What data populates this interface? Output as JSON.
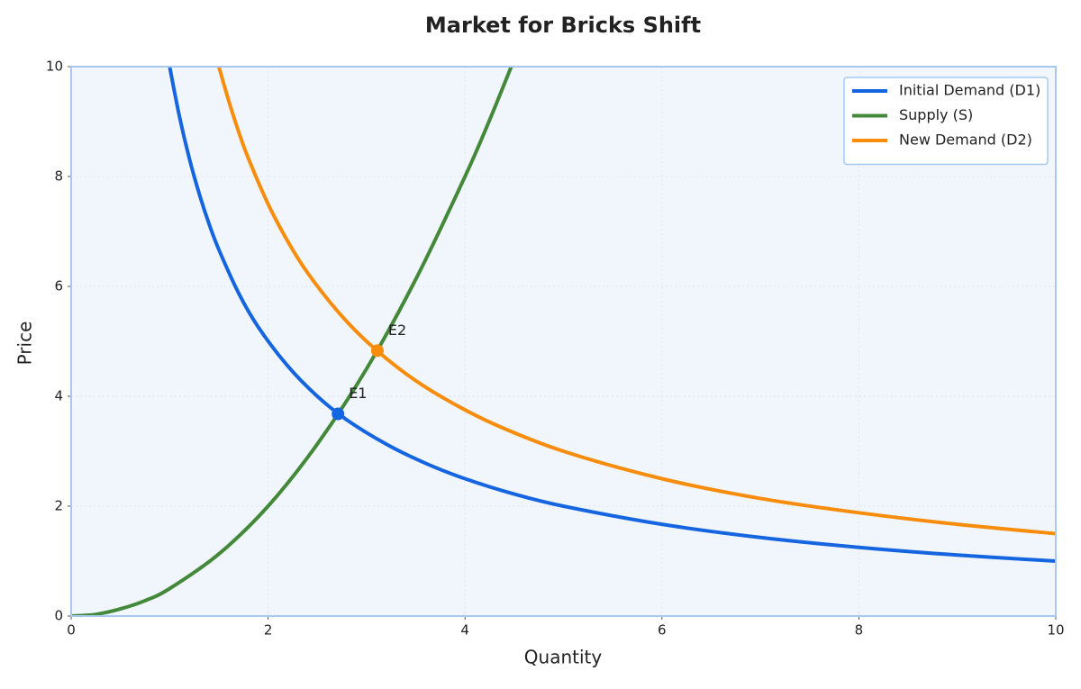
{
  "chart_data": {
    "type": "line",
    "title": "Market for Bricks Shift",
    "x_label": "Quantity",
    "y_label": "Price",
    "xlim": [
      0,
      10
    ],
    "ylim": [
      0,
      10
    ],
    "xticks": [
      0,
      2,
      4,
      6,
      8,
      10
    ],
    "yticks": [
      0,
      2,
      4,
      6,
      8,
      10
    ],
    "grid": true,
    "legend": "upper-right",
    "series": [
      {
        "name": "Initial Demand (D1)",
        "color": "#1565e0",
        "x": [
          1,
          1.1,
          1.2,
          1.3,
          1.4,
          1.5,
          1.7,
          1.9,
          2.2,
          2.5,
          2.8,
          3.2,
          3.6,
          4,
          4.5,
          5,
          6,
          7,
          8,
          9,
          10
        ],
        "values": [
          10,
          9.09,
          8.33,
          7.69,
          7.14,
          6.67,
          5.88,
          5.26,
          4.55,
          4,
          3.57,
          3.13,
          2.78,
          2.5,
          2.22,
          2,
          1.67,
          1.43,
          1.25,
          1.11,
          1
        ]
      },
      {
        "name": "Supply (S)",
        "color": "#44883a",
        "x": [
          0,
          0.25,
          0.5,
          0.75,
          1,
          1.5,
          2,
          2.5,
          3,
          3.5,
          4,
          4.25,
          4.47
        ],
        "values": [
          0,
          0.03,
          0.13,
          0.28,
          0.5,
          1.13,
          2,
          3.13,
          4.5,
          6.13,
          8,
          9.03,
          10
        ]
      },
      {
        "name": "New Demand (D2)",
        "color": "#f88c0c",
        "x": [
          1.5,
          1.6,
          1.7,
          1.8,
          2,
          2.2,
          2.4,
          2.7,
          3,
          3.4,
          3.8,
          4.3,
          5,
          6,
          7,
          8,
          9,
          10
        ],
        "values": [
          10,
          9.38,
          8.82,
          8.33,
          7.5,
          6.82,
          6.25,
          5.56,
          5,
          4.41,
          3.95,
          3.49,
          3,
          2.5,
          2.14,
          1.88,
          1.67,
          1.5
        ]
      }
    ],
    "points": [
      {
        "label": "E1",
        "x": 2.71,
        "y": 3.68,
        "color": "#1565e0"
      },
      {
        "label": "E2",
        "x": 3.11,
        "y": 4.83,
        "color": "#f88c0c"
      }
    ]
  }
}
